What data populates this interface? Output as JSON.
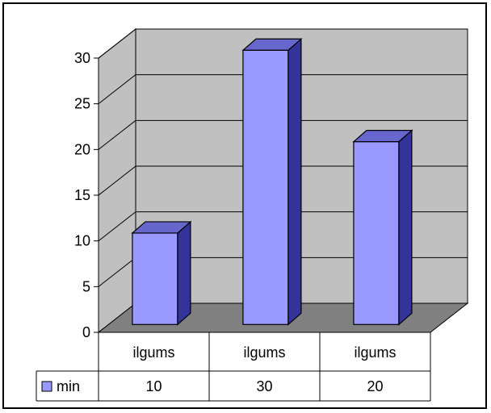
{
  "chart_data": {
    "type": "bar",
    "categories": [
      "ilgums",
      "ilgums",
      "ilgums"
    ],
    "series": [
      {
        "name": "min",
        "values": [
          10,
          30,
          20
        ]
      }
    ],
    "title": "",
    "xlabel": "",
    "ylabel": "",
    "ylim": [
      0,
      30
    ],
    "yticks": [
      0,
      5,
      10,
      15,
      20,
      25,
      30
    ],
    "grid": true,
    "legend": "bottom-left (data table)",
    "three_d": true,
    "colors": {
      "bar_front": "#9999ff",
      "bar_side": "#333399",
      "bar_top": "#6666cc",
      "back_wall": "#c0c0c0",
      "floor": "#808080",
      "grid": "#000000"
    }
  }
}
